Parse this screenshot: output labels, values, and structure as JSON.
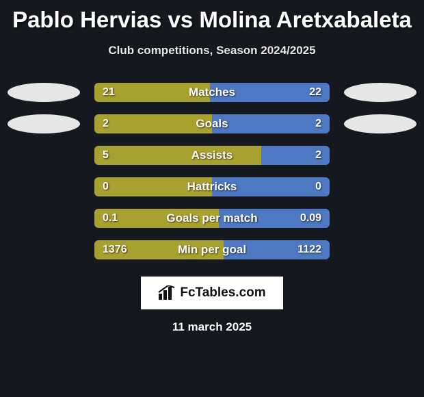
{
  "title": "Pablo Hervias vs Molina Aretxabaleta",
  "subtitle": "Club competitions, Season 2024/2025",
  "date": "11 march 2025",
  "brand_text": "FcTables.com",
  "colors": {
    "left": "#a9a12f",
    "right": "#4f78c2",
    "track": "#14233f",
    "photo": "#e6e6e6",
    "bg": "#15181f"
  },
  "show_photo_rows": [
    0,
    1
  ],
  "metrics": [
    {
      "label": "Matches",
      "left_val": "21",
      "right_val": "22",
      "left_pct": 49,
      "right_pct": 51
    },
    {
      "label": "Goals",
      "left_val": "2",
      "right_val": "2",
      "left_pct": 50,
      "right_pct": 50
    },
    {
      "label": "Assists",
      "left_val": "5",
      "right_val": "2",
      "left_pct": 71,
      "right_pct": 29
    },
    {
      "label": "Hattricks",
      "left_val": "0",
      "right_val": "0",
      "left_pct": 50,
      "right_pct": 50
    },
    {
      "label": "Goals per match",
      "left_val": "0.1",
      "right_val": "0.09",
      "left_pct": 53,
      "right_pct": 47
    },
    {
      "label": "Min per goal",
      "left_val": "1376",
      "right_val": "1122",
      "left_pct": 55,
      "right_pct": 45
    }
  ]
}
